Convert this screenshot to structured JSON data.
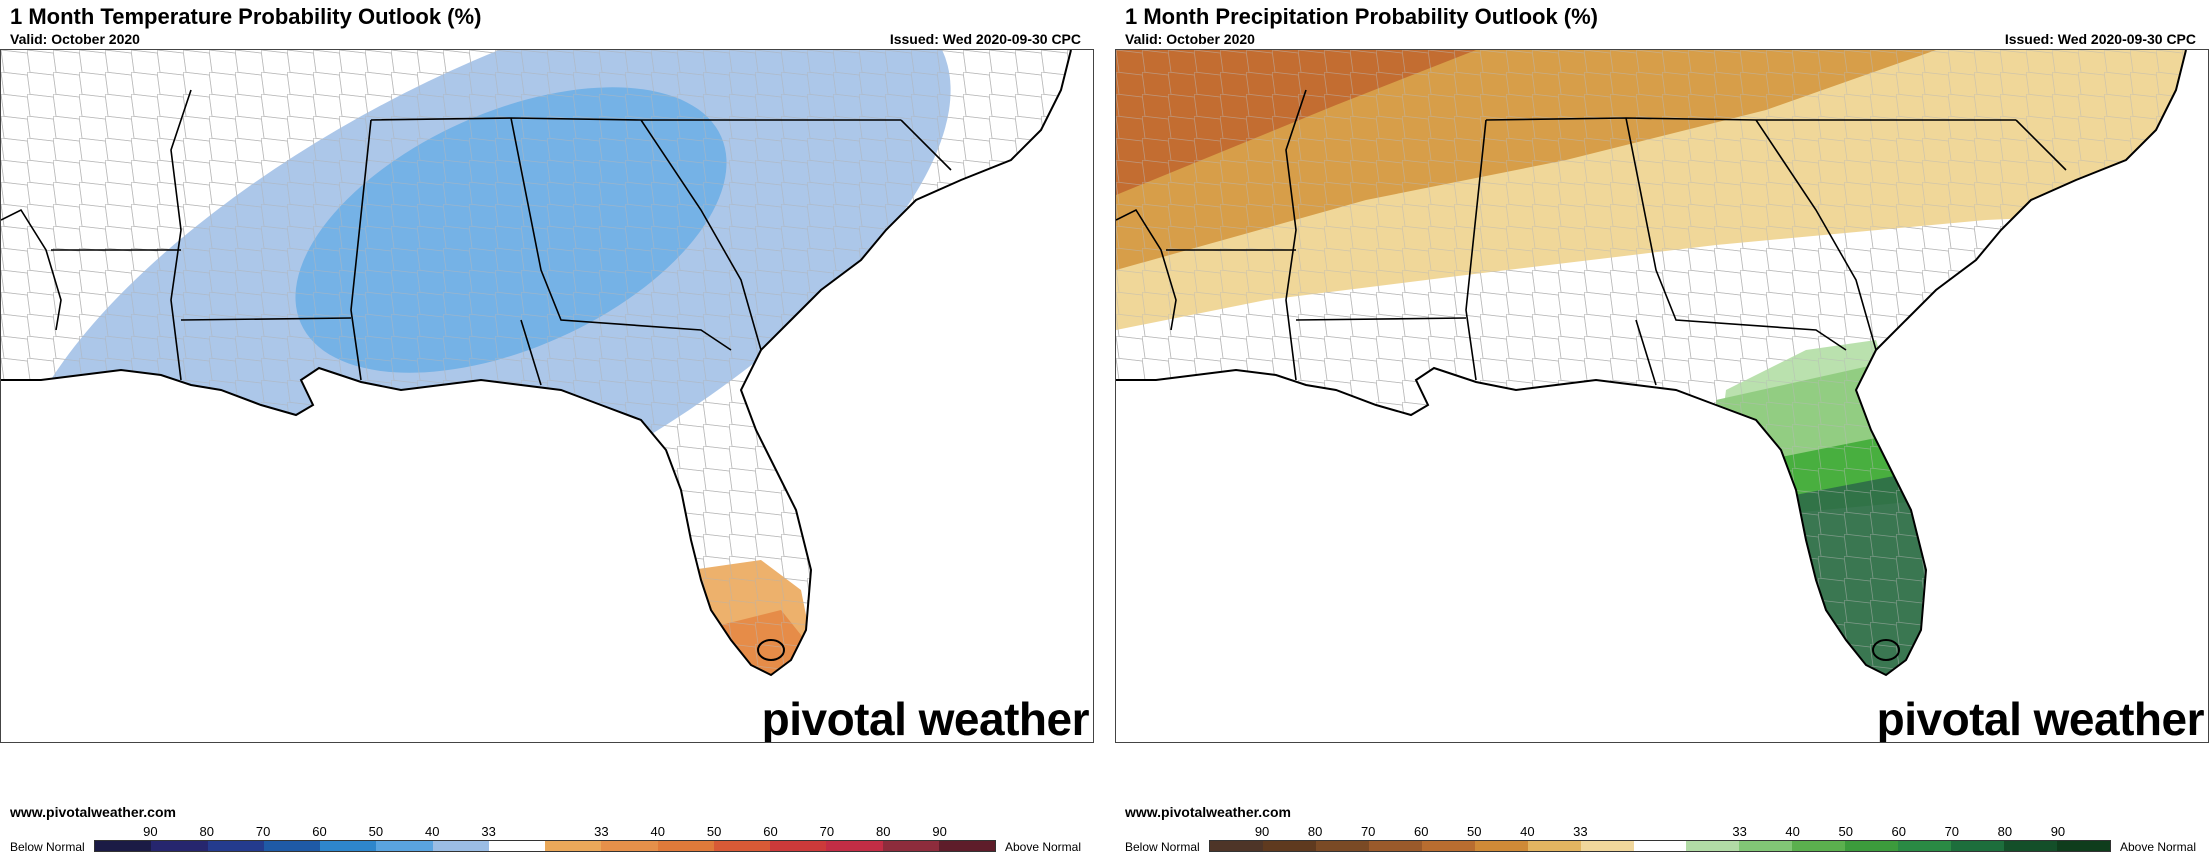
{
  "temperature_panel": {
    "title": "1 Month Temperature Probability Outlook (%)",
    "valid": "Valid: October 2020",
    "issued": "Issued: Wed 2020-09-30 CPC",
    "site": "www.pivotalweather.com",
    "brand": "pivotal weather",
    "legend": {
      "left_label": "Below Normal",
      "right_label": "Above Normal",
      "tick_labels": [
        "90",
        "80",
        "70",
        "60",
        "50",
        "40",
        "33",
        "33",
        "40",
        "50",
        "60",
        "70",
        "80",
        "90"
      ],
      "colors": [
        "#1b1b45",
        "#26266e",
        "#243b8e",
        "#1f5aa6",
        "#2e86cc",
        "#5aa4e0",
        "#9bbde4",
        "#ffffff",
        "#eaa85a",
        "#e6904a",
        "#e07a3a",
        "#d85a36",
        "#cc3a3a",
        "#c22d45",
        "#8e2c3c",
        "#5e1d2a"
      ]
    },
    "map": {
      "below_weak_color": "#9dbde5",
      "below_strong_color": "#6fafe6",
      "above_weak_color": "#eba85c",
      "above_strong_color": "#e48845"
    }
  },
  "precipitation_panel": {
    "title": "1 Month Precipitation Probability Outlook (%)",
    "valid": "Valid: October 2020",
    "issued": "Issued: Wed 2020-09-30 CPC",
    "site": "www.pivotalweather.com",
    "brand": "pivotal weather",
    "legend": {
      "left_label": "Below Normal",
      "right_label": "Above Normal",
      "tick_labels": [
        "90",
        "80",
        "70",
        "60",
        "50",
        "40",
        "33",
        "33",
        "40",
        "50",
        "60",
        "70",
        "80",
        "90"
      ],
      "colors": [
        "#4e3528",
        "#5f3a1f",
        "#7a4a25",
        "#9a5a2b",
        "#b86d30",
        "#cf8a37",
        "#e3b561",
        "#f1d79c",
        "#ffffff",
        "#b2dba6",
        "#82c776",
        "#5bb04e",
        "#3c9b3c",
        "#2a8a44",
        "#1d6e3c",
        "#144f29",
        "#0f3d1c"
      ]
    },
    "map": {
      "dry_strong_color": "#c26a30",
      "dry_mid_color": "#d59b45",
      "dry_weak_color": "#efd594",
      "wet_weak_color": "#b6dfaa",
      "wet_mid_color": "#8fcb80",
      "wet_strong_color": "#45ad3b",
      "wet_max_color": "#2f7048"
    }
  }
}
